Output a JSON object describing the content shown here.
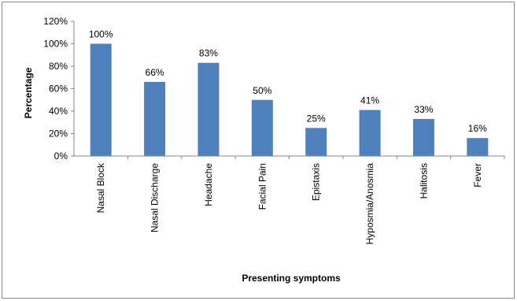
{
  "chart_data": {
    "type": "bar",
    "categories": [
      "Nasal Block",
      "Nasal Discharge",
      "Headache",
      "Facial Pain",
      "Epistaxis",
      "Hyposmia/Anosmia",
      "Halitosis",
      "Fever"
    ],
    "values": [
      100,
      66,
      83,
      50,
      25,
      41,
      33,
      16
    ],
    "data_labels": [
      "100%",
      "66%",
      "83%",
      "50%",
      "25%",
      "41%",
      "33%",
      "16%"
    ],
    "yticks": [
      "0%",
      "20%",
      "40%",
      "60%",
      "80%",
      "100%",
      "120%"
    ],
    "ylim": [
      0,
      120
    ],
    "xlabel": "Presenting symptoms",
    "ylabel": "Percentage",
    "title": "",
    "grid": false,
    "bar_color": "#4f81bd"
  }
}
